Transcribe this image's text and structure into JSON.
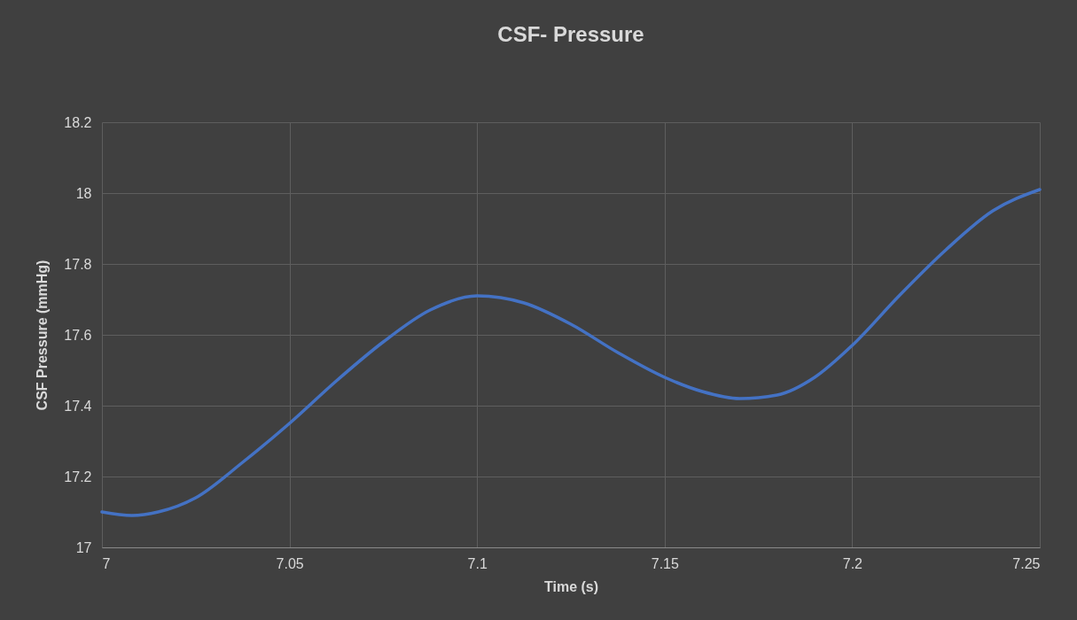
{
  "chart_data": {
    "type": "line",
    "title": "CSF- Pressure",
    "xlabel": "Time (s)",
    "ylabel": "CSF Pressure (mmHg)",
    "x": [
      7,
      7.008,
      7.015,
      7.025,
      7.0375,
      7.05,
      7.0625,
      7.075,
      7.0875,
      7.1,
      7.1125,
      7.125,
      7.1375,
      7.15,
      7.16,
      7.17,
      7.18,
      7.19,
      7.2,
      7.2125,
      7.225,
      7.2375,
      7.25
    ],
    "series": [
      {
        "color": "#4472c4",
        "values": [
          17.1,
          17.09,
          17.1,
          17.14,
          17.24,
          17.35,
          17.47,
          17.58,
          17.67,
          17.71,
          17.69,
          17.63,
          17.55,
          17.48,
          17.44,
          17.42,
          17.43,
          17.48,
          17.57,
          17.71,
          17.84,
          17.95,
          18.01
        ]
      }
    ],
    "xlim": [
      7,
      7.25
    ],
    "xticks": [
      7,
      7.05,
      7.1,
      7.15,
      7.2,
      7.25
    ],
    "ylim": [
      17,
      18.2
    ],
    "yticks": [
      17,
      17.2,
      17.4,
      17.6,
      17.8,
      18,
      18.2
    ],
    "grid": true,
    "legend": false,
    "marker": "none",
    "line_style": "solid"
  }
}
